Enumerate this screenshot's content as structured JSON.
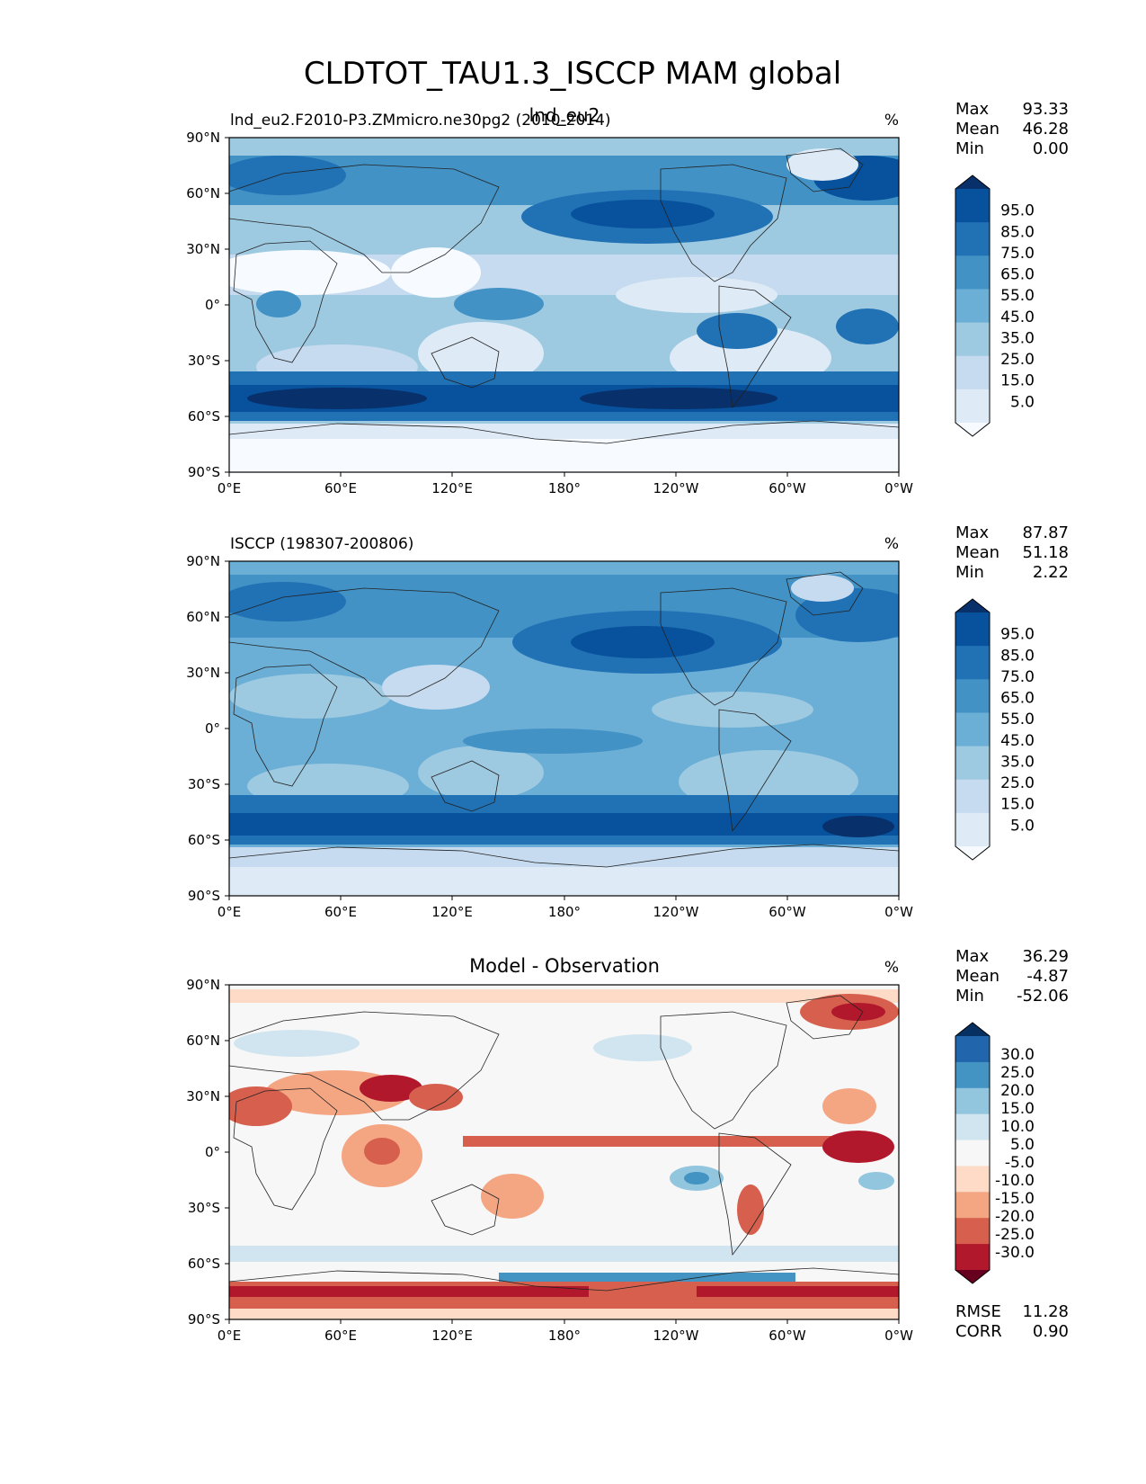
{
  "title": "CLDTOT_TAU1.3_ISCCP MAM global",
  "colors": {
    "seq": [
      "#f7fbff",
      "#deebf7",
      "#c6dbef",
      "#9ecae1",
      "#6baed6",
      "#4292c6",
      "#2171b5",
      "#08519c",
      "#08306b"
    ],
    "div": [
      "#67001f",
      "#b2182b",
      "#d6604d",
      "#f4a582",
      "#fddbc7",
      "#f7f7f7",
      "#d1e5f0",
      "#92c5de",
      "#4393c3",
      "#2166ac",
      "#053061"
    ]
  },
  "lon_ticks": [
    "0°E",
    "60°E",
    "120°E",
    "180°",
    "120°W",
    "60°W",
    "0°W"
  ],
  "lat_ticks": [
    "90°N",
    "60°N",
    "30°N",
    "0°",
    "30°S",
    "60°S",
    "90°S"
  ],
  "panels": [
    {
      "id": "test",
      "left_title": "lnd_eu2.F2010-P3.ZMmicro.ne30pg2 (2010-2014)",
      "center_title": "lnd_eu2",
      "units": "%",
      "stats": [
        {
          "label": "Max",
          "value": "93.33"
        },
        {
          "label": "Mean",
          "value": "46.28"
        },
        {
          "label": "Min",
          "value": "0.00"
        }
      ],
      "colorbar": {
        "labels": [
          "95.0",
          "85.0",
          "75.0",
          "65.0",
          "55.0",
          "45.0",
          "35.0",
          "25.0",
          "15.0",
          "5.0"
        ]
      }
    },
    {
      "id": "ref",
      "left_title": "ISCCP (198307-200806)",
      "center_title": "",
      "units": "%",
      "stats": [
        {
          "label": "Max",
          "value": "87.87"
        },
        {
          "label": "Mean",
          "value": "51.18"
        },
        {
          "label": "Min",
          "value": "2.22"
        }
      ],
      "colorbar": {
        "labels": [
          "95.0",
          "85.0",
          "75.0",
          "65.0",
          "55.0",
          "45.0",
          "35.0",
          "25.0",
          "15.0",
          "5.0"
        ]
      }
    },
    {
      "id": "diff",
      "left_title": "",
      "center_title": "Model - Observation",
      "units": "%",
      "stats": [
        {
          "label": "Max",
          "value": "36.29"
        },
        {
          "label": "Mean",
          "value": "-4.87"
        },
        {
          "label": "Min",
          "value": "-52.06"
        }
      ],
      "colorbar": {
        "labels": [
          "30.0",
          "25.0",
          "20.0",
          "15.0",
          "10.0",
          "5.0",
          "-5.0",
          "-10.0",
          "-15.0",
          "-20.0",
          "-25.0",
          "-30.0"
        ]
      },
      "extra_stats": [
        {
          "label": "RMSE",
          "value": "11.28"
        },
        {
          "label": "CORR",
          "value": "0.90"
        }
      ]
    }
  ]
}
